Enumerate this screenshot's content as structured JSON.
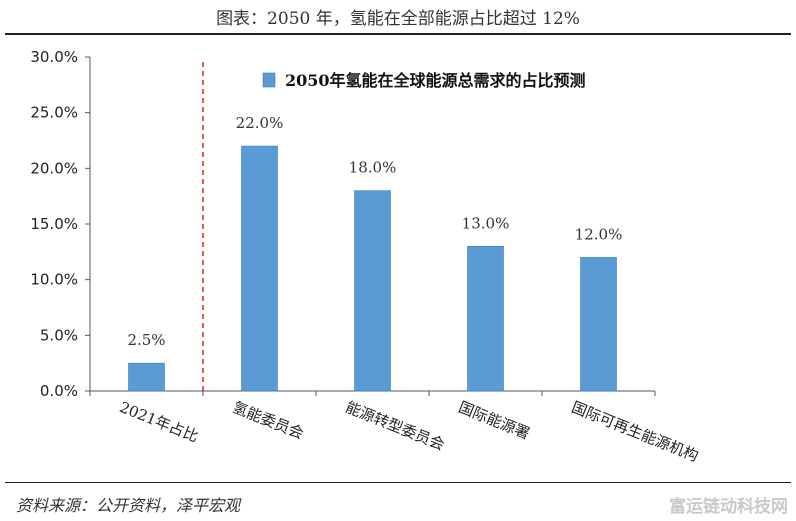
{
  "figure_title": "图表：2050 年，氢能在全部能源占比超过 12%",
  "source": "资料来源：公开资料，泽平宏观",
  "watermark": "富运链动科技网",
  "colors": {
    "bar": "#5b9bd5",
    "bar_edge": "#3f7fb8",
    "divider": "#e02020",
    "axis": "#555555"
  },
  "chart_data": {
    "type": "bar",
    "categories": [
      "2021年占比",
      "氢能委员会",
      "能源转型委员会",
      "国际能源署",
      "国际可再生能源机构"
    ],
    "series": [
      {
        "name": "2050年氢能在全球能源总需求的占比预测",
        "values": [
          2.5,
          22.0,
          18.0,
          13.0,
          12.0
        ],
        "value_labels": [
          "2.5%",
          "22.0%",
          "18.0%",
          "13.0%",
          "12.0%"
        ]
      }
    ],
    "y_ticks": [
      "0.0%",
      "5.0%",
      "10.0%",
      "15.0%",
      "20.0%",
      "25.0%",
      "30.0%"
    ],
    "ylim": [
      0,
      30
    ],
    "grid": false,
    "legend": "top",
    "divider_after_category": 0
  }
}
